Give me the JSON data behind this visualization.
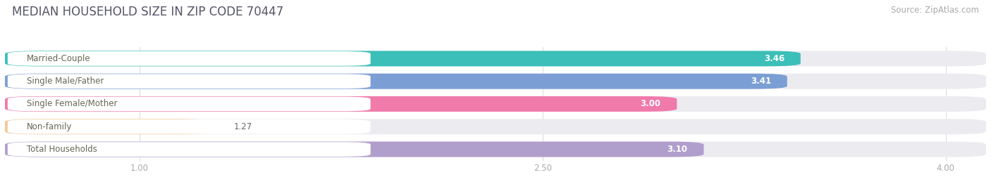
{
  "title": "MEDIAN HOUSEHOLD SIZE IN ZIP CODE 70447",
  "source": "Source: ZipAtlas.com",
  "categories": [
    "Married-Couple",
    "Single Male/Father",
    "Single Female/Mother",
    "Non-family",
    "Total Households"
  ],
  "values": [
    3.46,
    3.41,
    3.0,
    1.27,
    3.1
  ],
  "bar_colors": [
    "#3bbfb8",
    "#7b9fd4",
    "#f07aaa",
    "#f5c897",
    "#b09fcc"
  ],
  "xlim_data": [
    0.5,
    4.15
  ],
  "xdata_min": 0.5,
  "xticks": [
    1.0,
    2.5,
    4.0
  ],
  "xtick_labels": [
    "1.00",
    "2.50",
    "4.00"
  ],
  "background_color": "#ffffff",
  "bar_bg_color": "#ebebf0",
  "title_fontsize": 12,
  "label_fontsize": 8.5,
  "value_fontsize": 8.5,
  "source_fontsize": 8.5,
  "title_color": "#555566",
  "label_color": "#666655",
  "tick_color": "#aaaaaa"
}
